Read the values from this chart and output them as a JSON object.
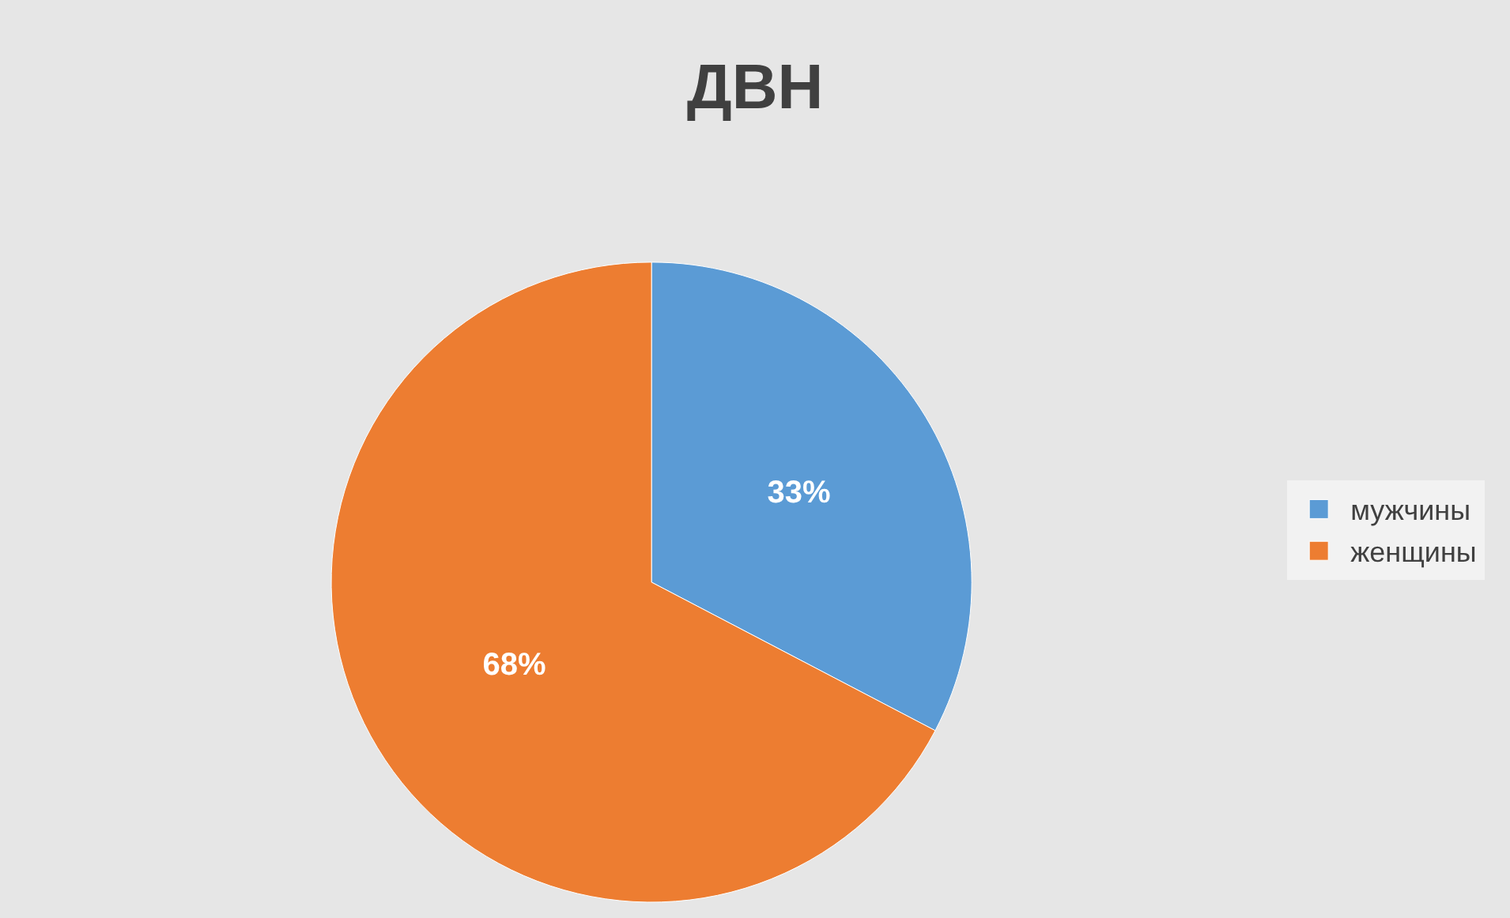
{
  "chart_data": {
    "type": "pie",
    "title": "ДВН",
    "categories": [
      "мужчины",
      "женщины"
    ],
    "values": [
      33,
      68
    ],
    "colors": [
      "#5b9bd5",
      "#ed7d31"
    ],
    "value_labels": [
      "33%",
      "68%"
    ],
    "legend": "right"
  }
}
